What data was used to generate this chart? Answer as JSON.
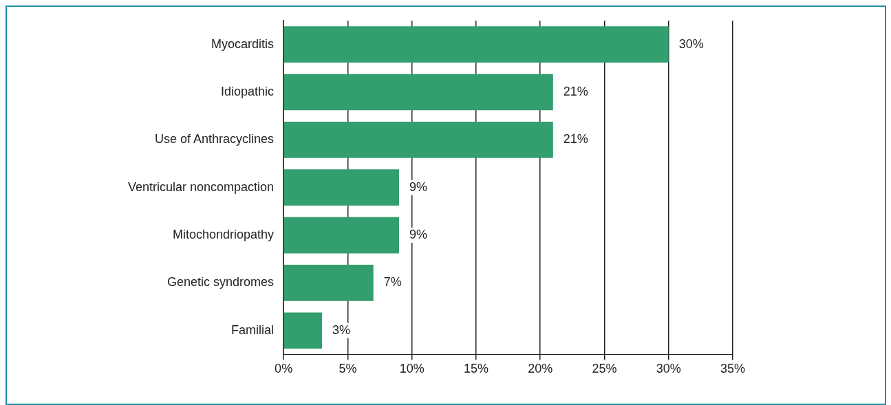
{
  "chart_data": {
    "type": "bar",
    "orientation": "horizontal",
    "categories": [
      "Myocarditis",
      "Idiopathic",
      "Use of Anthracyclines",
      "Ventricular noncompaction",
      "Mitochondriopathy",
      "Genetic syndromes",
      "Familial"
    ],
    "values": [
      30,
      21,
      21,
      9,
      9,
      7,
      3
    ],
    "value_labels": [
      "30%",
      "21%",
      "21%",
      "9%",
      "9%",
      "7%",
      "3%"
    ],
    "color": "#339e6e",
    "xlim": [
      0,
      35
    ],
    "xticks": [
      {
        "value": 0,
        "label": "0%"
      },
      {
        "value": 5,
        "label": "5%"
      },
      {
        "value": 10,
        "label": "10%"
      },
      {
        "value": 15,
        "label": "15%"
      },
      {
        "value": 20,
        "label": "20%"
      },
      {
        "value": 25,
        "label": "25%"
      },
      {
        "value": 30,
        "label": "30%"
      },
      {
        "value": 35,
        "label": "35%"
      }
    ],
    "grid": "x",
    "legend": false
  }
}
